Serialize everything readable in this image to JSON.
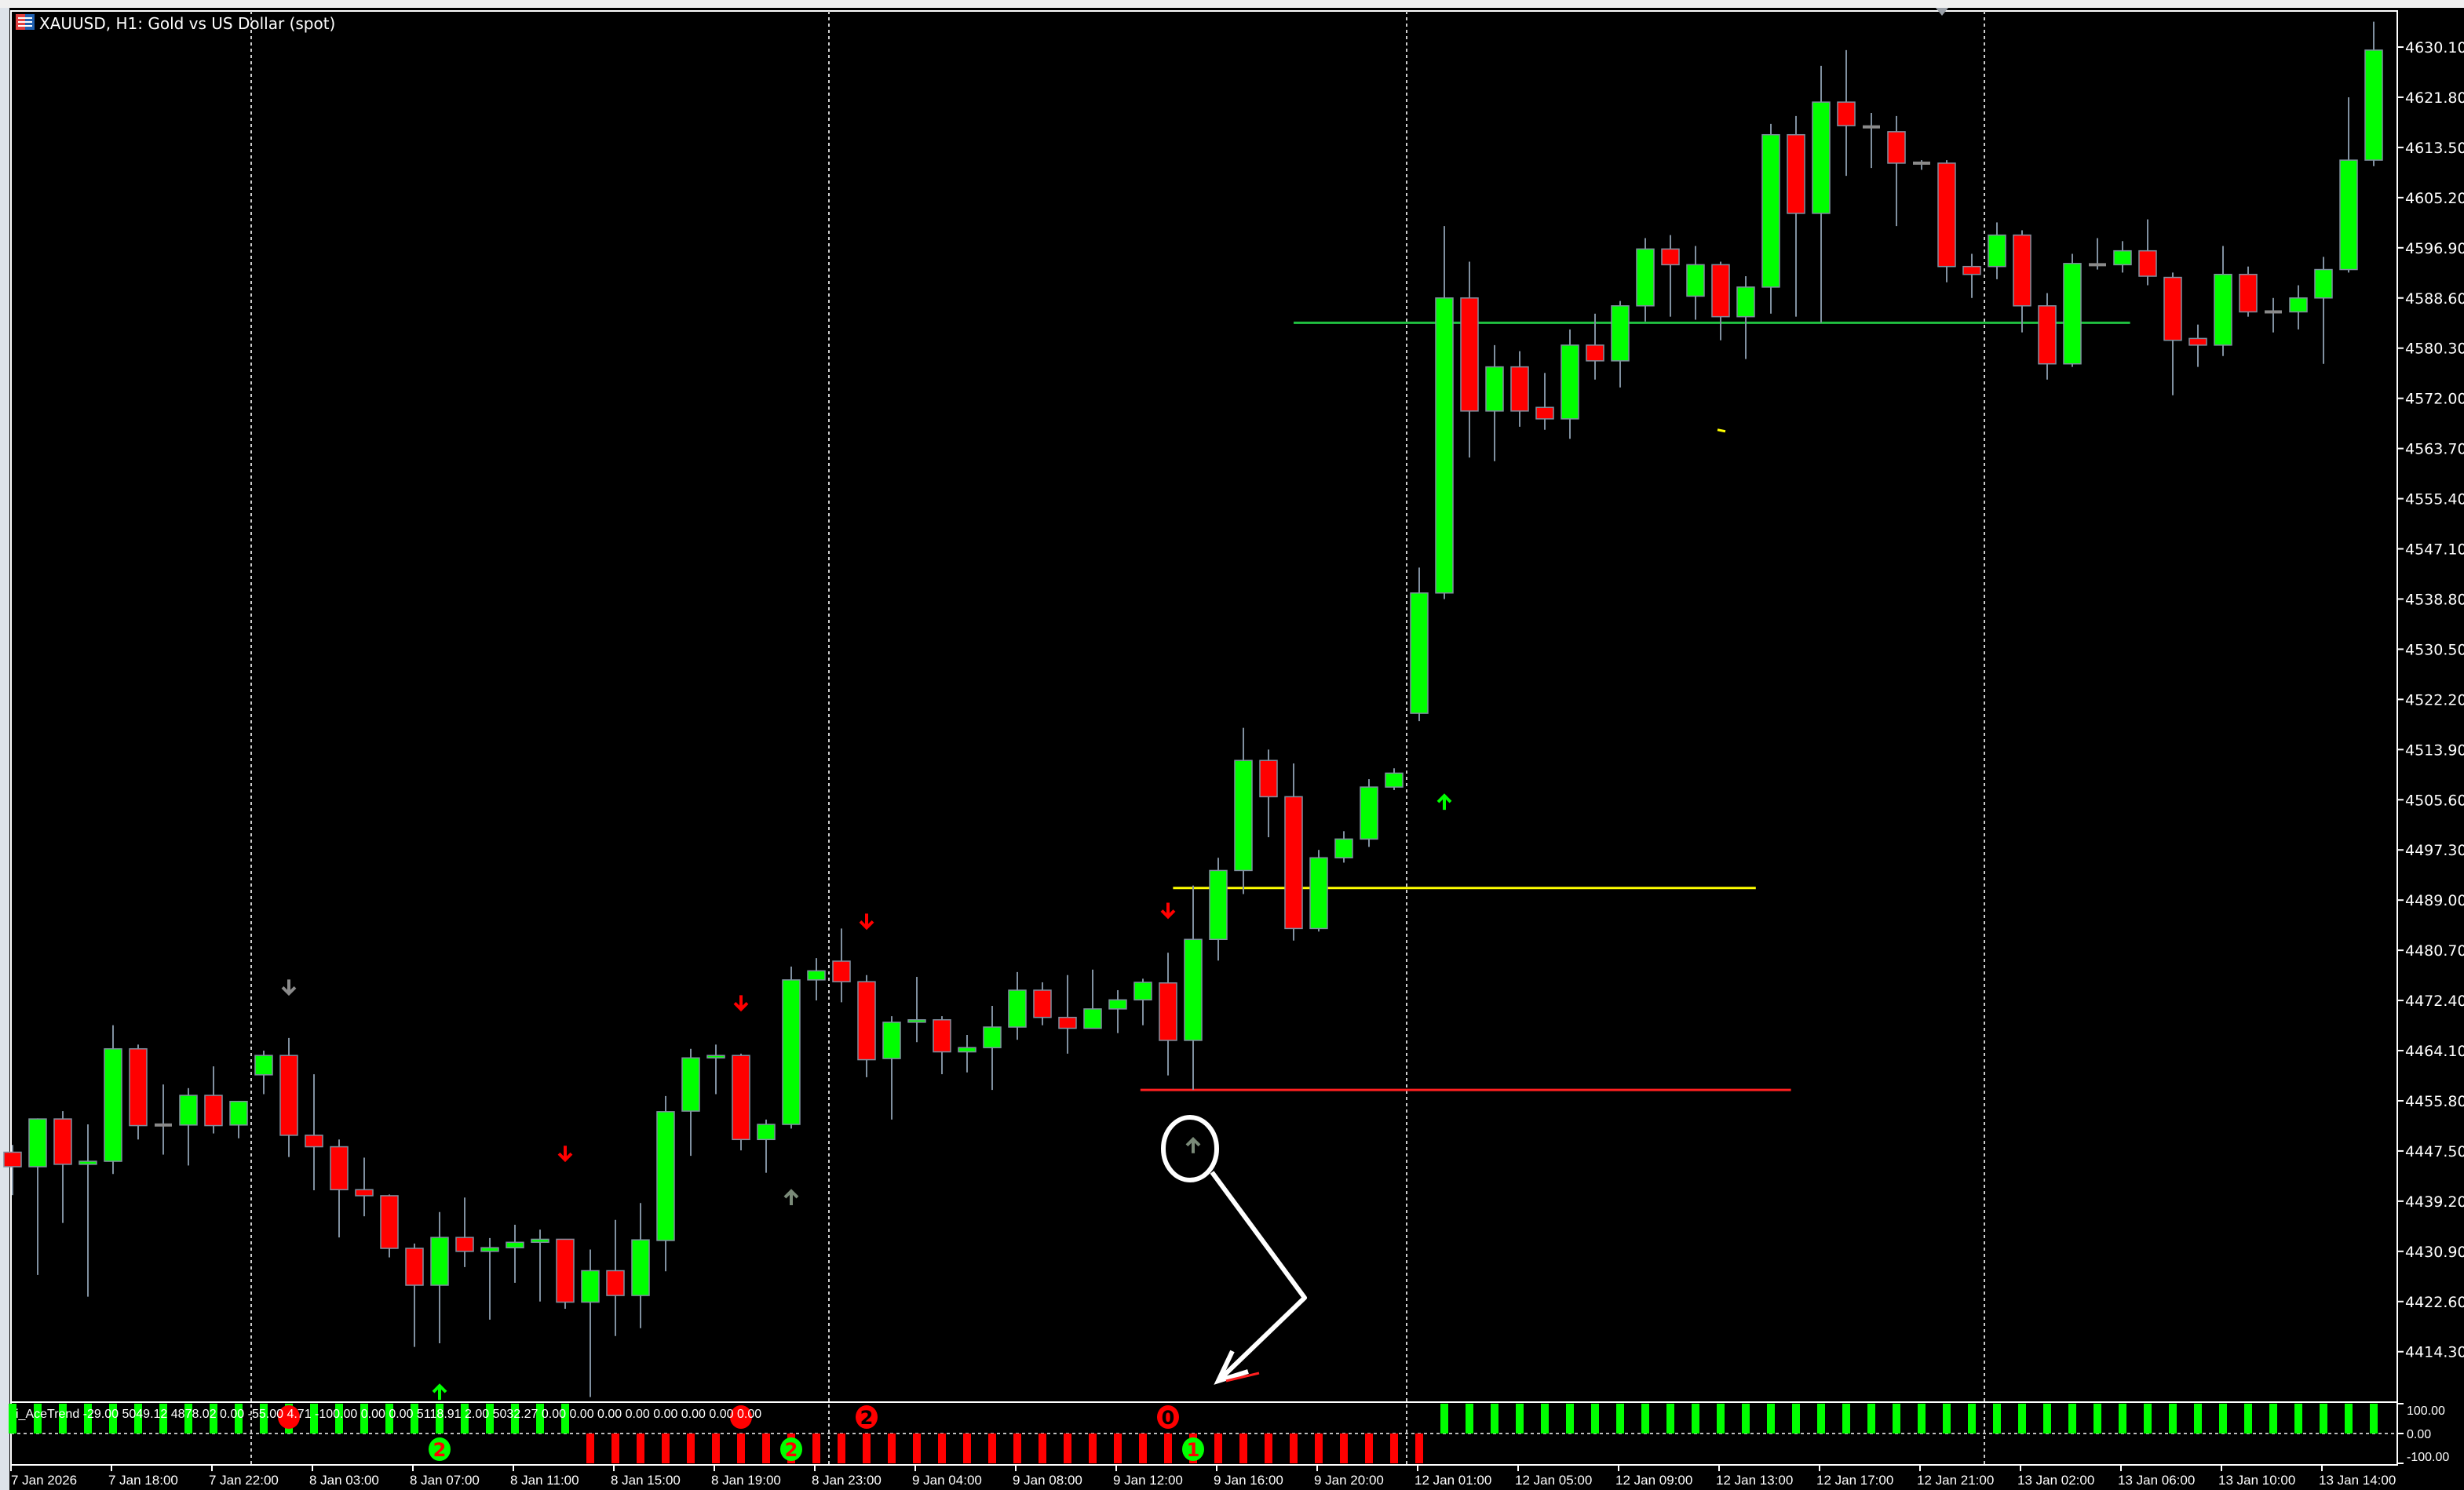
{
  "window": {
    "title": "XAUUSD, H1:  Gold vs US Dollar (spot)",
    "icon": "chart-window-icon"
  },
  "colors": {
    "background": "#000000",
    "bull": "#00ff00",
    "bear": "#ff0000",
    "wick": "#8090a0",
    "axis": "#ffffff",
    "support_line": "#ff2020",
    "mid_line": "#ffff00",
    "resistance_line": "#20c040",
    "signal_gray": "#7a8a78"
  },
  "chart_data": {
    "type": "candlestick",
    "symbol": "XAUUSD",
    "timeframe": "H1",
    "ylim": [
      4406,
      4636
    ],
    "grid": false,
    "y_ticks": [
      "4630.10",
      "4621.80",
      "4613.50",
      "4605.20",
      "4596.90",
      "4588.60",
      "4580.30",
      "4572.00",
      "4563.70",
      "4555.40",
      "4547.10",
      "4538.80",
      "4530.50",
      "4522.20",
      "4513.90",
      "4505.60",
      "4497.30",
      "4489.00",
      "4480.70",
      "4472.40",
      "4464.10",
      "4455.80",
      "4447.50",
      "4439.20",
      "4430.90",
      "4422.60",
      "4414.30"
    ],
    "time_labels": [
      "7 Jan 2026",
      "7 Jan 18:00",
      "7 Jan 22:00",
      "8 Jan 03:00",
      "8 Jan 07:00",
      "8 Jan 11:00",
      "8 Jan 15:00",
      "8 Jan 19:00",
      "8 Jan 23:00",
      "9 Jan 04:00",
      "9 Jan 08:00",
      "9 Jan 12:00",
      "9 Jan 16:00",
      "9 Jan 20:00",
      "12 Jan 01:00",
      "12 Jan 05:00",
      "12 Jan 09:00",
      "12 Jan 13:00",
      "12 Jan 17:00",
      "12 Jan 21:00",
      "13 Jan 02:00",
      "13 Jan 06:00",
      "13 Jan 10:00",
      "13 Jan 14:00"
    ],
    "candles_ohlc": [
      [
        4447.3,
        4448.5,
        4440.2,
        4444.9
      ],
      [
        4444.9,
        4452.9,
        4427.0,
        4452.8
      ],
      [
        4452.8,
        4454.1,
        4435.6,
        4445.3
      ],
      [
        4445.3,
        4451.9,
        4423.4,
        4445.8
      ],
      [
        4445.8,
        4468.3,
        4443.7,
        4464.4
      ],
      [
        4464.4,
        4465.1,
        4449.4,
        4451.7
      ],
      [
        4451.8,
        4458.5,
        4446.9,
        4451.8
      ],
      [
        4451.8,
        4457.9,
        4445.1,
        4456.7
      ],
      [
        4456.7,
        4461.5,
        4450.4,
        4451.7
      ],
      [
        4451.8,
        4455.8,
        4449.6,
        4455.7
      ],
      [
        4460.1,
        4464.1,
        4456.9,
        4463.3
      ],
      [
        4463.3,
        4466.2,
        4446.5,
        4450.1
      ],
      [
        4450.1,
        4460.2,
        4441.0,
        4448.2
      ],
      [
        4448.2,
        4449.4,
        4433.2,
        4441.1
      ],
      [
        4441.1,
        4446.4,
        4436.7,
        4440.1
      ],
      [
        4440.1,
        4440.3,
        4429.9,
        4431.4
      ],
      [
        4431.4,
        4432.2,
        4415.1,
        4425.3
      ],
      [
        4425.3,
        4437.4,
        4415.7,
        4433.2
      ],
      [
        4433.2,
        4439.8,
        4428.3,
        4430.9
      ],
      [
        4430.9,
        4433.1,
        4419.6,
        4431.5
      ],
      [
        4431.5,
        4435.3,
        4425.7,
        4432.4
      ],
      [
        4432.4,
        4434.5,
        4422.6,
        4432.9
      ],
      [
        4432.9,
        4432.9,
        4421.4,
        4422.5
      ],
      [
        4422.5,
        4431.2,
        4406.8,
        4427.7
      ],
      [
        4427.7,
        4436.1,
        4416.9,
        4423.6
      ],
      [
        4423.6,
        4438.9,
        4418.2,
        4432.8
      ],
      [
        4432.7,
        4456.6,
        4427.6,
        4454.0
      ],
      [
        4454.1,
        4464.4,
        4446.7,
        4462.9
      ],
      [
        4462.9,
        4465.1,
        4456.9,
        4463.3
      ],
      [
        4463.3,
        4463.6,
        4447.6,
        4449.4
      ],
      [
        4449.4,
        4452.7,
        4443.9,
        4451.9
      ],
      [
        4451.9,
        4478.0,
        4451.2,
        4475.8
      ],
      [
        4475.8,
        4479.4,
        4472.4,
        4477.3
      ],
      [
        4478.9,
        4484.3,
        4472.1,
        4475.5
      ],
      [
        4475.5,
        4476.6,
        4459.7,
        4462.6
      ],
      [
        4462.8,
        4469.8,
        4452.7,
        4468.8
      ],
      [
        4468.8,
        4476.3,
        4465.5,
        4469.2
      ],
      [
        4469.2,
        4469.8,
        4460.2,
        4463.9
      ],
      [
        4463.9,
        4466.7,
        4460.5,
        4464.6
      ],
      [
        4464.6,
        4471.5,
        4457.6,
        4468.0
      ],
      [
        4468.0,
        4477.1,
        4465.9,
        4474.1
      ],
      [
        4474.1,
        4475.4,
        4468.3,
        4469.6
      ],
      [
        4469.6,
        4476.6,
        4463.6,
        4467.8
      ],
      [
        4467.8,
        4477.5,
        4467.8,
        4471.0
      ],
      [
        4471.0,
        4474.1,
        4467.0,
        4472.5
      ],
      [
        4472.5,
        4476.0,
        4468.3,
        4475.4
      ],
      [
        4475.3,
        4480.3,
        4460.0,
        4465.8
      ],
      [
        4465.8,
        4491.4,
        4457.6,
        4482.5
      ],
      [
        4482.5,
        4496.0,
        4479.0,
        4493.9
      ],
      [
        4493.9,
        4517.5,
        4490.0,
        4512.1
      ],
      [
        4512.1,
        4513.9,
        4499.4,
        4506.1
      ],
      [
        4506.1,
        4511.6,
        4482.3,
        4484.3
      ],
      [
        4484.3,
        4497.3,
        4483.8,
        4496.0
      ],
      [
        4496.0,
        4500.4,
        4495.2,
        4499.1
      ],
      [
        4499.1,
        4509.0,
        4497.8,
        4507.7
      ],
      [
        4507.7,
        4510.8,
        4507.2,
        4510.0
      ],
      [
        4519.9,
        4544.0,
        4518.6,
        4539.8
      ],
      [
        4539.8,
        4600.5,
        4538.8,
        4588.6
      ],
      [
        4588.6,
        4594.6,
        4562.2,
        4569.9
      ],
      [
        4569.9,
        4580.8,
        4561.6,
        4577.2
      ],
      [
        4577.2,
        4579.8,
        4567.3,
        4569.9
      ],
      [
        4570.5,
        4576.2,
        4566.8,
        4568.6
      ],
      [
        4568.6,
        4583.4,
        4565.3,
        4580.8
      ],
      [
        4580.8,
        4586.0,
        4575.1,
        4578.2
      ],
      [
        4578.2,
        4588.1,
        4573.8,
        4587.3
      ],
      [
        4587.3,
        4598.5,
        4584.7,
        4596.7
      ],
      [
        4596.7,
        4599.0,
        4585.5,
        4594.1
      ],
      [
        4588.9,
        4597.2,
        4585.0,
        4594.1
      ],
      [
        4594.1,
        4594.6,
        4581.6,
        4585.5
      ],
      [
        4585.5,
        4592.2,
        4578.5,
        4590.4
      ],
      [
        4590.4,
        4617.4,
        4586.0,
        4615.6
      ],
      [
        4615.6,
        4618.7,
        4585.5,
        4602.6
      ],
      [
        4602.6,
        4627.0,
        4584.5,
        4621.0
      ],
      [
        4621.0,
        4629.6,
        4608.8,
        4617.1
      ],
      [
        4616.9,
        4619.2,
        4610.1,
        4616.6
      ],
      [
        4616.1,
        4618.7,
        4600.5,
        4610.9
      ],
      [
        4610.9,
        4611.4,
        4609.8,
        4610.9
      ],
      [
        4610.9,
        4611.4,
        4591.2,
        4593.8
      ],
      [
        4593.8,
        4595.9,
        4588.6,
        4592.5
      ],
      [
        4593.8,
        4601.1,
        4591.7,
        4599.0
      ],
      [
        4599.0,
        4599.8,
        4582.9,
        4587.3
      ],
      [
        4587.3,
        4589.4,
        4575.1,
        4577.7
      ],
      [
        4577.7,
        4595.9,
        4577.2,
        4594.3
      ],
      [
        4594.1,
        4598.5,
        4593.3,
        4594.1
      ],
      [
        4594.1,
        4598.0,
        4592.8,
        4596.4
      ],
      [
        4596.4,
        4601.6,
        4590.7,
        4592.2
      ],
      [
        4592.0,
        4592.8,
        4572.5,
        4581.6
      ],
      [
        4581.9,
        4584.2,
        4577.2,
        4580.8
      ],
      [
        4580.8,
        4597.2,
        4579.0,
        4592.5
      ],
      [
        4592.5,
        4593.8,
        4585.5,
        4586.3
      ],
      [
        4586.3,
        4588.6,
        4582.9,
        4586.0
      ],
      [
        4586.3,
        4590.7,
        4583.4,
        4588.6
      ],
      [
        4588.6,
        4595.4,
        4577.7,
        4593.3
      ],
      [
        4593.3,
        4621.8,
        4592.8,
        4611.4
      ],
      [
        4611.4,
        4634.3,
        4610.4,
        4629.6
      ]
    ],
    "horizontal_lines": [
      {
        "role": "resistance",
        "price": 4584.5,
        "color": "#20c040"
      },
      {
        "role": "mid",
        "price": 4491.0,
        "color": "#ffff00"
      },
      {
        "role": "support",
        "price": 4457.6,
        "color": "#ff2020"
      }
    ],
    "arrows": [
      {
        "bar": 11,
        "price": 4474.7,
        "dir": "down",
        "color": "#8a8a8a"
      },
      {
        "bar": 17,
        "price": 4407.5,
        "dir": "up",
        "color": "#00ff00"
      },
      {
        "bar": 22,
        "price": 4447.2,
        "dir": "down",
        "color": "#ff0000"
      },
      {
        "bar": 29,
        "price": 4472.1,
        "dir": "down",
        "color": "#ff0000"
      },
      {
        "bar": 31,
        "price": 4439.7,
        "dir": "up",
        "color": "#7a8a78"
      },
      {
        "bar": 34,
        "price": 4485.6,
        "dir": "down",
        "color": "#ff0000"
      },
      {
        "bar": 46,
        "price": 4487.4,
        "dir": "down",
        "color": "#ff0000"
      },
      {
        "bar": 47,
        "price": 4448.3,
        "dir": "up",
        "color": "#7a8a78"
      },
      {
        "bar": 57,
        "price": 4505.1,
        "dir": "up",
        "color": "#00ff00"
      }
    ],
    "marker_dash": {
      "bar": 68,
      "price": 4566.8,
      "color": "#ffff00"
    }
  },
  "indicator": {
    "label": "i_AceTrend -29.00 5049.12 4878.02 0.00 -55.00 4.71 -100.00 0.00 0.00 5118.91 2.00 5032.27 0.00 0.00 0.00 0.00 0.00 0.00 0.00 0.00",
    "y_ticks": [
      "100.00",
      "0.00",
      "-100.00"
    ],
    "segments": [
      {
        "from_bar": 0,
        "to_bar": 22,
        "value": 100,
        "color": "#00ff00"
      },
      {
        "from_bar": 23,
        "to_bar": 56,
        "value": -100,
        "color": "#ff0000"
      },
      {
        "from_bar": 57,
        "to_bar": 94,
        "value": 100,
        "color": "#00ff00"
      }
    ],
    "signals": [
      {
        "bar": 11,
        "text": "",
        "color": "#ff0000",
        "side": "upper"
      },
      {
        "bar": 17,
        "text": "2",
        "color": "#00ff00",
        "side": "lower"
      },
      {
        "bar": 29,
        "text": "",
        "color": "#ff0000",
        "side": "upper"
      },
      {
        "bar": 31,
        "text": "2",
        "color": "#00ff00",
        "side": "lower"
      },
      {
        "bar": 34,
        "text": "2",
        "color": "#ff0000",
        "side": "upper"
      },
      {
        "bar": 46,
        "text": "0",
        "color": "#ff0000",
        "side": "upper"
      },
      {
        "bar": 47,
        "text": "1",
        "color": "#00ff00",
        "side": "lower"
      }
    ]
  }
}
